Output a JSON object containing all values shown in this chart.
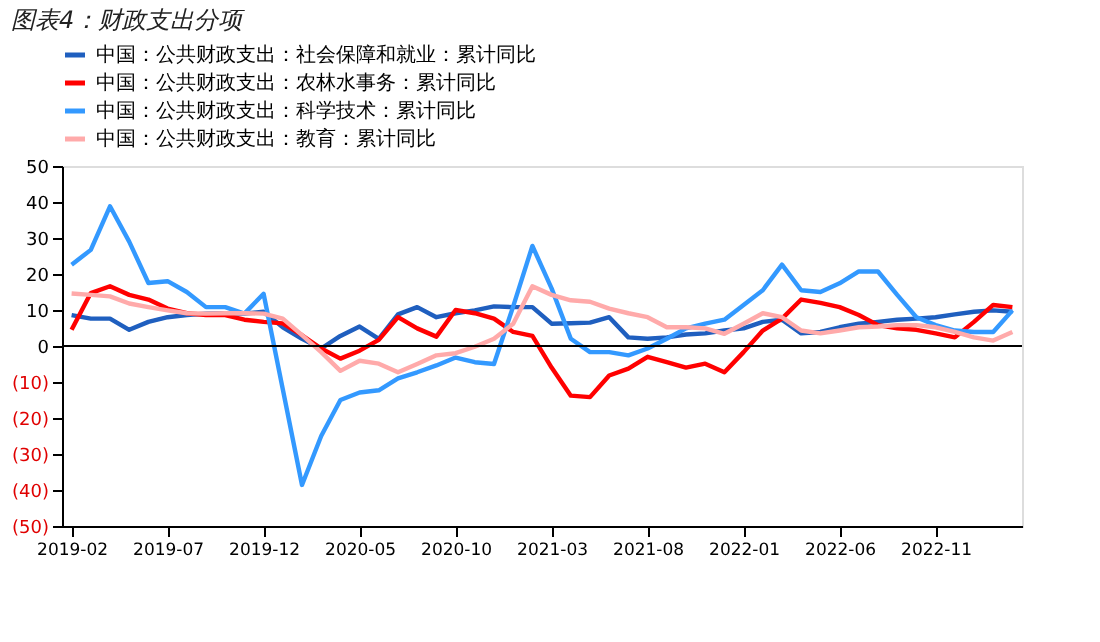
{
  "chart_data": {
    "type": "line",
    "title": "图表4：财政支出分项",
    "legend": "top",
    "categories": [
      "2019-02",
      null,
      null,
      null,
      null,
      "2019-07",
      null,
      null,
      null,
      null,
      "2019-12",
      null,
      null,
      null,
      null,
      "2020-05",
      null,
      null,
      null,
      null,
      "2020-10",
      null,
      null,
      null,
      null,
      "2021-03",
      null,
      null,
      null,
      null,
      "2021-08",
      null,
      null,
      null,
      null,
      "2022-01",
      null,
      null,
      null,
      null,
      "2022-06",
      null,
      null,
      null,
      null,
      "2022-11",
      null,
      null,
      null,
      null
    ],
    "ylim": [
      -50,
      50
    ],
    "yticks": [
      {
        "value": -50,
        "label": "(50)"
      },
      {
        "value": -40,
        "label": "(40)"
      },
      {
        "value": -30,
        "label": "(30)"
      },
      {
        "value": -20,
        "label": "(20)"
      },
      {
        "value": -10,
        "label": "(10)"
      },
      0,
      10,
      20,
      30,
      40,
      50
    ],
    "series": [
      {
        "name": "中国：公共财政支出：社会保障和就业：累计同比",
        "color": "#1f5fbf",
        "values": [
          8.6,
          7.6,
          7.6,
          4.5,
          6.7,
          8,
          8.6,
          9,
          9.1,
          9,
          9.5,
          5.2,
          2,
          -0.7,
          2.8,
          5.4,
          2,
          8.8,
          10.8,
          8,
          9.1,
          9.9,
          11,
          10.8,
          10.8,
          6.2,
          6.3,
          6.5,
          8,
          2.4,
          2,
          2.4,
          3.2,
          3.5,
          4.3,
          4.9,
          6.7,
          7.3,
          3.5,
          3.9,
          5.2,
          6.2,
          6.7,
          7.3,
          7.6,
          8,
          8.8,
          9.5,
          9.9,
          9.5
        ]
      },
      {
        "name": "中国：公共财政支出：农林水事务：累计同比",
        "color": "#ff0000",
        "values": [
          4.5,
          14.7,
          16.6,
          14.2,
          12.9,
          10.4,
          9.1,
          8.6,
          8.6,
          7.3,
          6.7,
          6.3,
          3,
          -0.7,
          -3.5,
          -1.3,
          1.7,
          8,
          4.9,
          2.6,
          10,
          9.1,
          7.6,
          3.9,
          2.8,
          -6,
          -13.8,
          -14.2,
          -8.2,
          -6.3,
          -3,
          -4.5,
          -6,
          -4.9,
          -7.3,
          -1.7,
          4.3,
          7.6,
          12.9,
          12,
          10.8,
          8.6,
          5.8,
          4.9,
          4.5,
          3.5,
          2.4,
          6.7,
          11.4,
          10.8
        ]
      },
      {
        "name": "中国：公共财政支出：科学技术：累计同比",
        "color": "#3399ff",
        "values": [
          22.6,
          26.7,
          38.8,
          29,
          17.5,
          18,
          15,
          10.8,
          10.8,
          9,
          14.5,
          -12,
          -38.6,
          -25,
          -15,
          -12.9,
          -12.3,
          -9,
          -7.3,
          -5.4,
          -3.2,
          -4.5,
          -5,
          11,
          27.8,
          16,
          2,
          -1.7,
          -1.7,
          -2.6,
          -0.7,
          2,
          4.9,
          6.2,
          7.3,
          11.4,
          15.5,
          22.6,
          15.5,
          15,
          17.4,
          20.7,
          20.7,
          14.2,
          8,
          5.8,
          4.3,
          3.9,
          3.9,
          9.9
        ]
      },
      {
        "name": "中国：公共财政支出：教育：累计同比",
        "color": "#ffaaaa",
        "values": [
          14.6,
          14.2,
          13.8,
          11.8,
          10.8,
          9.9,
          9.1,
          9,
          9.1,
          9.1,
          9,
          7.6,
          3,
          -1.7,
          -6.9,
          -4.1,
          -4.9,
          -7.3,
          -5,
          -2.6,
          -2,
          -0.2,
          2,
          6.2,
          16.6,
          14.2,
          12.7,
          12.3,
          10.4,
          9.1,
          8,
          5.2,
          5.2,
          4.9,
          3.4,
          6.2,
          9.1,
          8,
          4.3,
          3.5,
          4.3,
          5.2,
          5.4,
          5.8,
          5.8,
          5.2,
          3.9,
          2.4,
          1.5,
          3.9
        ]
      }
    ]
  }
}
